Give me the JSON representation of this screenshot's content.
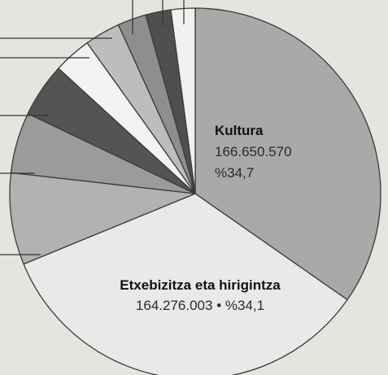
{
  "chart_data": {
    "type": "pie",
    "categories": [
      "Kultura",
      "Etxebizitza eta hirigintza",
      null,
      null,
      null,
      null,
      null,
      null,
      null,
      null
    ],
    "values": [
      34.7,
      34.1,
      8.0,
      5.3,
      4.7,
      3.3,
      3.1,
      2.5,
      2.2,
      2.1
    ],
    "value_labels": [
      "%34,7",
      "%34,1",
      null,
      null,
      null,
      null,
      null,
      null,
      null,
      null
    ],
    "amount_labels": [
      "166.650.570",
      "164.276.003",
      null,
      null,
      null,
      null,
      null,
      null,
      null,
      null
    ],
    "colors": [
      "#a9a9a7",
      "#e9e9e7",
      "#b2b2b0",
      "#9b9b99",
      "#545452",
      "#f3f3f1",
      "#bdbdbb",
      "#8e8e8c",
      "#4f4f4d",
      "#f1f1ef"
    ]
  }
}
